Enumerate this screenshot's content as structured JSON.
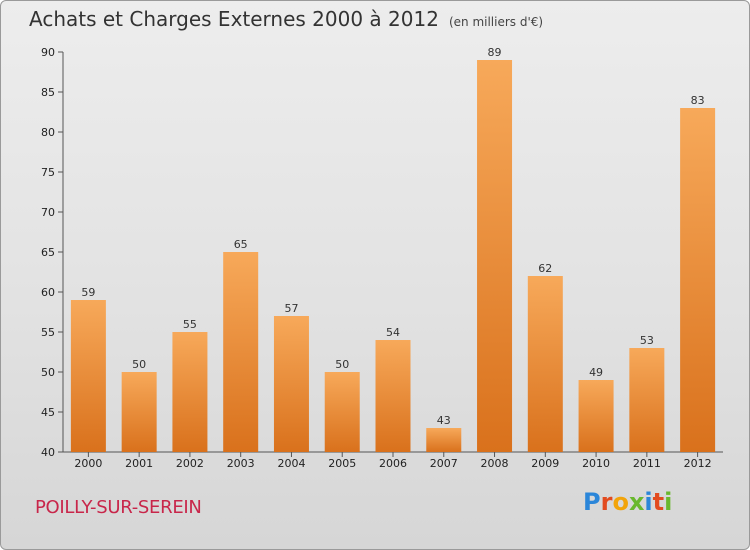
{
  "title": "Achats et Charges Externes 2000 à 2012",
  "unit": "(en milliers d'€)",
  "commune": "POILLY-SUR-SEREIN",
  "logo": "Proxiti",
  "logo_colors": [
    "#2b86d9",
    "#e24b1f",
    "#f2a40a",
    "#69b82d",
    "#2b86d9",
    "#e24b1f",
    "#69b82d"
  ],
  "colors": {
    "bar_light": "#f7a95a",
    "bar_dark": "#d9711c",
    "commune": "#c8264a"
  },
  "chart_data": {
    "type": "bar",
    "categories": [
      "2000",
      "2001",
      "2002",
      "2003",
      "2004",
      "2005",
      "2006",
      "2007",
      "2008",
      "2009",
      "2010",
      "2011",
      "2012"
    ],
    "values": [
      59,
      50,
      55,
      65,
      57,
      50,
      54,
      43,
      89,
      62,
      49,
      53,
      83
    ],
    "ylim": [
      40,
      90
    ],
    "yticks": [
      40,
      45,
      50,
      55,
      60,
      65,
      70,
      75,
      80,
      85,
      90
    ],
    "grid": false,
    "title": "Achats et Charges Externes 2000 à 2012",
    "xlabel": "",
    "ylabel": ""
  }
}
